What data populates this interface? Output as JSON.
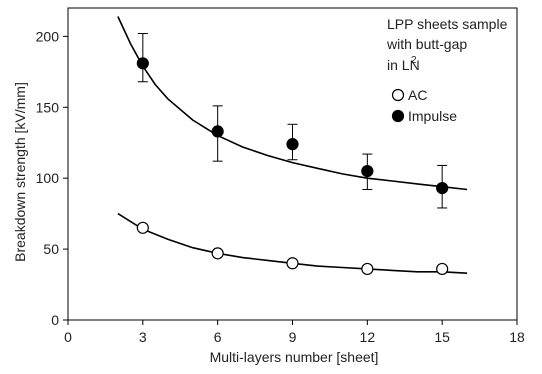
{
  "chart_data": {
    "type": "scatter",
    "xlabel": "Multi-layers number [sheet]",
    "ylabel": "Breakdown strength [kV/mm]",
    "xlim": [
      0,
      18
    ],
    "ylim": [
      0,
      220
    ],
    "xticks": [
      0,
      3,
      6,
      9,
      12,
      15,
      18
    ],
    "yticks": [
      0,
      50,
      100,
      150,
      200
    ],
    "grid": false,
    "legend_position": "right",
    "annotation": [
      "LPP sheets sample",
      "with butt-gap",
      "in LN",
      "2"
    ],
    "series": [
      {
        "name": "AC",
        "marker": "open-circle",
        "x": [
          3,
          6,
          9,
          12,
          15
        ],
        "y": [
          65,
          47,
          40,
          36,
          36
        ],
        "fit": {
          "x": [
            2,
            3,
            4,
            5,
            6,
            7,
            8,
            9,
            10,
            11,
            12,
            13,
            14,
            15,
            16
          ],
          "y": [
            75,
            64,
            57,
            51,
            47,
            44,
            42,
            40,
            38,
            37,
            36,
            35,
            34,
            34,
            33
          ]
        }
      },
      {
        "name": "Impulse",
        "marker": "filled-circle",
        "x": [
          3,
          6,
          9,
          12,
          15
        ],
        "y": [
          181,
          133,
          124,
          105,
          93
        ],
        "err_low": [
          168,
          112,
          113,
          92,
          79
        ],
        "err_high": [
          202,
          151,
          138,
          117,
          109
        ],
        "fit": {
          "x": [
            2,
            2.5,
            3,
            3.5,
            4,
            5,
            6,
            7,
            8,
            9,
            10,
            11,
            12,
            13,
            14,
            15,
            16
          ],
          "y": [
            214,
            195,
            179,
            166,
            156,
            141,
            130,
            122,
            116,
            111,
            107,
            103,
            100,
            98,
            96,
            94,
            92
          ]
        }
      }
    ]
  }
}
